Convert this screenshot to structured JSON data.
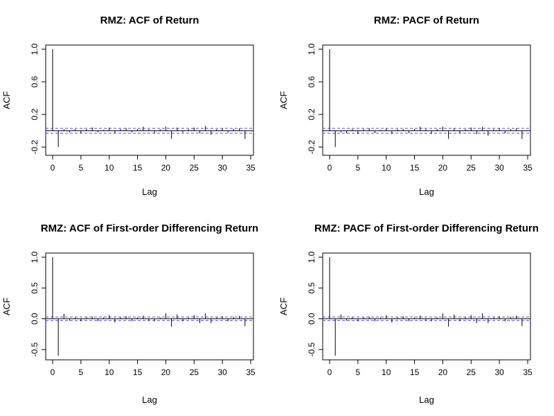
{
  "chart_data": [
    {
      "type": "bar",
      "title": "RMZ: ACF of Return",
      "xlabel": "Lag",
      "ylabel": "ACF",
      "xlim": [
        0,
        35
      ],
      "ylim": [
        -0.25,
        1.0
      ],
      "xticks": [
        "0",
        "5",
        "10",
        "15",
        "20",
        "25",
        "30",
        "35"
      ],
      "yticks": [
        "-0.2",
        "0.2",
        "0.6",
        "1.0"
      ],
      "conf_bounds": [
        0.03,
        -0.03
      ],
      "zero_line": true,
      "lags": [
        0,
        1,
        2,
        3,
        4,
        5,
        6,
        7,
        8,
        9,
        10,
        11,
        12,
        13,
        14,
        15,
        16,
        17,
        18,
        19,
        20,
        21,
        22,
        23,
        24,
        25,
        26,
        27,
        28,
        29,
        30,
        31,
        32,
        33,
        34
      ],
      "values": [
        1.0,
        -0.2,
        0.02,
        -0.02,
        0.02,
        -0.03,
        0.02,
        0.04,
        -0.02,
        0.01,
        0.04,
        -0.03,
        0.02,
        0.03,
        -0.02,
        0.02,
        0.05,
        0.02,
        -0.03,
        0.02,
        0.05,
        -0.1,
        0.04,
        -0.02,
        0.02,
        0.04,
        -0.03,
        0.06,
        -0.05,
        0.02,
        0.03,
        -0.02,
        0.02,
        0.03,
        -0.1
      ]
    },
    {
      "type": "bar",
      "title": "RMZ: PACF of Return",
      "xlabel": "Lag",
      "ylabel": "ACF",
      "xlim": [
        0,
        35
      ],
      "ylim": [
        -0.25,
        1.0
      ],
      "xticks": [
        "0",
        "5",
        "10",
        "15",
        "20",
        "25",
        "30",
        "35"
      ],
      "yticks": [
        "-0.2",
        "0.2",
        "0.6",
        "1.0"
      ],
      "conf_bounds": [
        0.03,
        -0.03
      ],
      "zero_line": true,
      "lags": [
        0,
        1,
        2,
        3,
        4,
        5,
        6,
        7,
        8,
        9,
        10,
        11,
        12,
        13,
        14,
        15,
        16,
        17,
        18,
        19,
        20,
        21,
        22,
        23,
        24,
        25,
        26,
        27,
        28,
        29,
        30,
        31,
        32,
        33,
        34
      ],
      "values": [
        1.0,
        -0.2,
        -0.02,
        -0.03,
        0.02,
        -0.04,
        0.02,
        0.03,
        -0.03,
        0.01,
        0.03,
        -0.04,
        0.02,
        0.02,
        -0.03,
        0.02,
        0.05,
        0.02,
        -0.04,
        0.02,
        0.05,
        -0.1,
        0.03,
        -0.03,
        0.02,
        0.04,
        -0.04,
        0.05,
        -0.06,
        0.02,
        0.03,
        -0.03,
        0.02,
        0.03,
        -0.1
      ]
    },
    {
      "type": "bar",
      "title": "RMZ: ACF of First-order Differencing Return",
      "xlabel": "Lag",
      "ylabel": "ACF",
      "xlim": [
        0,
        35
      ],
      "ylim": [
        -0.6,
        1.0
      ],
      "xticks": [
        "0",
        "5",
        "10",
        "15",
        "20",
        "25",
        "30",
        "35"
      ],
      "yticks": [
        "-0.5",
        "0.0",
        "0.5",
        "1.0"
      ],
      "conf_bounds": [
        0.03,
        -0.03
      ],
      "zero_line": true,
      "lags": [
        0,
        1,
        2,
        3,
        4,
        5,
        6,
        7,
        8,
        9,
        10,
        11,
        12,
        13,
        14,
        15,
        16,
        17,
        18,
        19,
        20,
        21,
        22,
        23,
        24,
        25,
        26,
        27,
        28,
        29,
        30,
        31,
        32,
        33,
        34
      ],
      "values": [
        1.0,
        -0.6,
        0.08,
        -0.03,
        0.02,
        -0.04,
        0.02,
        0.03,
        -0.04,
        0.02,
        0.06,
        -0.06,
        0.02,
        0.04,
        -0.04,
        0.02,
        0.05,
        -0.03,
        -0.04,
        0.02,
        0.09,
        -0.13,
        0.07,
        -0.04,
        0.02,
        0.06,
        -0.07,
        0.09,
        -0.07,
        0.02,
        0.04,
        -0.04,
        0.03,
        0.05,
        -0.12
      ]
    },
    {
      "type": "bar",
      "title": "RMZ: PACF of First-order Differencing Return",
      "xlabel": "Lag",
      "ylabel": "ACF",
      "xlim": [
        0,
        35
      ],
      "ylim": [
        -0.6,
        1.0
      ],
      "xticks": [
        "0",
        "5",
        "10",
        "15",
        "20",
        "25",
        "30",
        "35"
      ],
      "yticks": [
        "-0.5",
        "0.0",
        "0.5",
        "1.0"
      ],
      "conf_bounds": [
        0.03,
        -0.03
      ],
      "zero_line": true,
      "lags": [
        0,
        1,
        2,
        3,
        4,
        5,
        6,
        7,
        8,
        9,
        10,
        11,
        12,
        13,
        14,
        15,
        16,
        17,
        18,
        19,
        20,
        21,
        22,
        23,
        24,
        25,
        26,
        27,
        28,
        29,
        30,
        31,
        32,
        33,
        34
      ],
      "values": [
        1.0,
        -0.6,
        0.07,
        -0.03,
        0.02,
        -0.04,
        0.02,
        0.03,
        -0.04,
        0.02,
        0.06,
        -0.06,
        0.02,
        0.04,
        -0.04,
        0.02,
        0.05,
        -0.03,
        -0.04,
        0.02,
        0.09,
        -0.13,
        0.07,
        -0.04,
        0.02,
        0.06,
        -0.07,
        0.09,
        -0.07,
        0.02,
        0.04,
        -0.04,
        0.03,
        0.05,
        -0.12
      ]
    }
  ],
  "colors": {
    "axes": "#000000",
    "bars": "#000000",
    "conf_bounds": "#4f4fd6",
    "zero_line": "#000000"
  }
}
